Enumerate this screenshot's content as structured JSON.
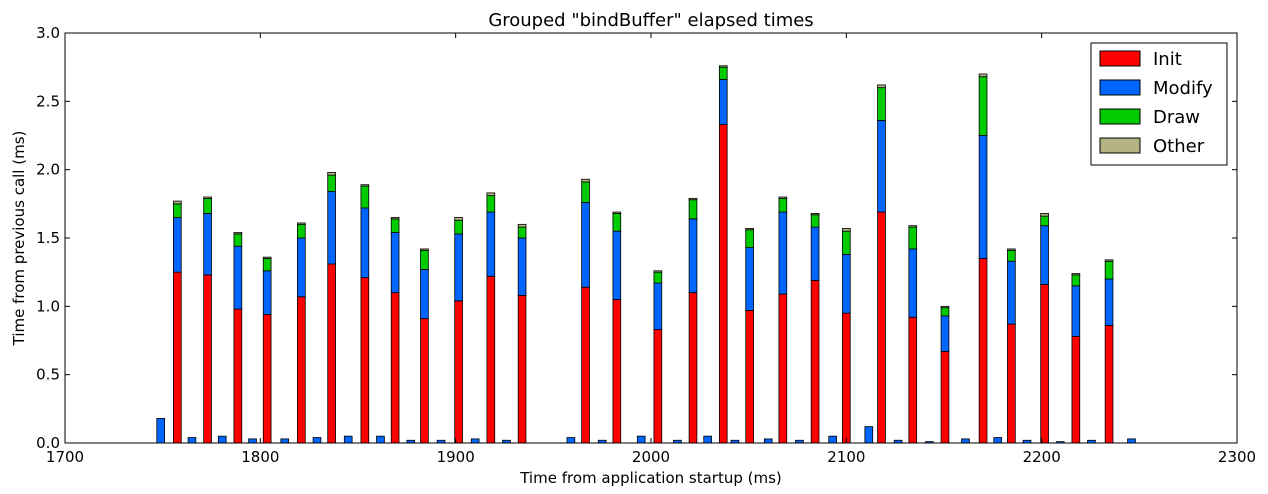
{
  "chart_data": {
    "type": "bar",
    "stacked": true,
    "title": "Grouped \"bindBuffer\" elapsed times",
    "xlabel": "Time from application startup (ms)",
    "ylabel": "Time from previous call (ms)",
    "xlim": [
      1700,
      2300
    ],
    "ylim": [
      0,
      3.0
    ],
    "xticks": [
      1700,
      1800,
      1900,
      2000,
      2100,
      2200,
      2300
    ],
    "xtick_labels": [
      "1700",
      "1800",
      "1900",
      "2000",
      "2100",
      "2200",
      "2300"
    ],
    "yticks": [
      0,
      0.5,
      1.0,
      1.5,
      2.0,
      2.5,
      3.0
    ],
    "ytick_labels": [
      "0.0",
      "0.5",
      "1.0",
      "1.5",
      "2.0",
      "2.5",
      "3.0"
    ],
    "grid": false,
    "legend_position": "top-right",
    "legend": [
      {
        "name": "Init",
        "color": "#ff0000"
      },
      {
        "name": "Modify",
        "color": "#0066ff"
      },
      {
        "name": "Draw",
        "color": "#00cc00"
      },
      {
        "name": "Other",
        "color": "#b2b282"
      }
    ],
    "stacked_bars": [
      {
        "x": 1757.5,
        "init": 1.25,
        "modify": 0.4,
        "draw": 0.1,
        "other": 0.02
      },
      {
        "x": 1773.0,
        "init": 1.23,
        "modify": 0.45,
        "draw": 0.11,
        "other": 0.01
      },
      {
        "x": 1788.5,
        "init": 0.98,
        "modify": 0.46,
        "draw": 0.09,
        "other": 0.01
      },
      {
        "x": 1803.5,
        "init": 0.94,
        "modify": 0.32,
        "draw": 0.09,
        "other": 0.01
      },
      {
        "x": 1821.0,
        "init": 1.07,
        "modify": 0.43,
        "draw": 0.1,
        "other": 0.01
      },
      {
        "x": 1836.5,
        "init": 1.31,
        "modify": 0.53,
        "draw": 0.12,
        "other": 0.02
      },
      {
        "x": 1853.5,
        "init": 1.21,
        "modify": 0.51,
        "draw": 0.16,
        "other": 0.01
      },
      {
        "x": 1869.0,
        "init": 1.1,
        "modify": 0.44,
        "draw": 0.1,
        "other": 0.01
      },
      {
        "x": 1884.0,
        "init": 0.91,
        "modify": 0.36,
        "draw": 0.14,
        "other": 0.01
      },
      {
        "x": 1901.5,
        "init": 1.04,
        "modify": 0.49,
        "draw": 0.1,
        "other": 0.02
      },
      {
        "x": 1918.0,
        "init": 1.22,
        "modify": 0.47,
        "draw": 0.12,
        "other": 0.02
      },
      {
        "x": 1934.0,
        "init": 1.08,
        "modify": 0.42,
        "draw": 0.08,
        "other": 0.02
      },
      {
        "x": 1966.5,
        "init": 1.14,
        "modify": 0.62,
        "draw": 0.15,
        "other": 0.02
      },
      {
        "x": 1982.5,
        "init": 1.05,
        "modify": 0.5,
        "draw": 0.13,
        "other": 0.01
      },
      {
        "x": 2003.5,
        "init": 0.83,
        "modify": 0.34,
        "draw": 0.08,
        "other": 0.01
      },
      {
        "x": 2021.5,
        "init": 1.1,
        "modify": 0.54,
        "draw": 0.14,
        "other": 0.01
      },
      {
        "x": 2037.0,
        "init": 2.33,
        "modify": 0.33,
        "draw": 0.09,
        "other": 0.01
      },
      {
        "x": 2050.5,
        "init": 0.97,
        "modify": 0.46,
        "draw": 0.13,
        "other": 0.01
      },
      {
        "x": 2067.5,
        "init": 1.09,
        "modify": 0.6,
        "draw": 0.1,
        "other": 0.01
      },
      {
        "x": 2084.0,
        "init": 1.19,
        "modify": 0.39,
        "draw": 0.09,
        "other": 0.01
      },
      {
        "x": 2100.0,
        "init": 0.95,
        "modify": 0.43,
        "draw": 0.17,
        "other": 0.02
      },
      {
        "x": 2118.0,
        "init": 1.69,
        "modify": 0.67,
        "draw": 0.24,
        "other": 0.02
      },
      {
        "x": 2134.0,
        "init": 0.92,
        "modify": 0.5,
        "draw": 0.16,
        "other": 0.01
      },
      {
        "x": 2150.5,
        "init": 0.67,
        "modify": 0.26,
        "draw": 0.06,
        "other": 0.01
      },
      {
        "x": 2170.0,
        "init": 1.35,
        "modify": 0.9,
        "draw": 0.43,
        "other": 0.02
      },
      {
        "x": 2184.5,
        "init": 0.87,
        "modify": 0.46,
        "draw": 0.08,
        "other": 0.01
      },
      {
        "x": 2201.5,
        "init": 1.16,
        "modify": 0.43,
        "draw": 0.07,
        "other": 0.02
      },
      {
        "x": 2217.5,
        "init": 0.78,
        "modify": 0.37,
        "draw": 0.08,
        "other": 0.01
      },
      {
        "x": 2234.5,
        "init": 0.86,
        "modify": 0.34,
        "draw": 0.13,
        "other": 0.01
      }
    ],
    "small_bars": [
      {
        "x": 1749.0,
        "modify": 0.18
      },
      {
        "x": 1765.0,
        "modify": 0.04
      },
      {
        "x": 1780.5,
        "modify": 0.05
      },
      {
        "x": 1796.0,
        "modify": 0.03
      },
      {
        "x": 1812.5,
        "modify": 0.03
      },
      {
        "x": 1829.0,
        "modify": 0.04
      },
      {
        "x": 1845.0,
        "modify": 0.05
      },
      {
        "x": 1861.5,
        "modify": 0.05
      },
      {
        "x": 1877.0,
        "modify": 0.02
      },
      {
        "x": 1892.5,
        "modify": 0.02
      },
      {
        "x": 1910.0,
        "modify": 0.03
      },
      {
        "x": 1926.0,
        "modify": 0.02
      },
      {
        "x": 1959.0,
        "modify": 0.04
      },
      {
        "x": 1975.0,
        "modify": 0.02
      },
      {
        "x": 1995.0,
        "modify": 0.05
      },
      {
        "x": 2013.5,
        "modify": 0.02
      },
      {
        "x": 2029.0,
        "modify": 0.05
      },
      {
        "x": 2043.0,
        "modify": 0.02
      },
      {
        "x": 2060.0,
        "modify": 0.03
      },
      {
        "x": 2076.0,
        "modify": 0.02
      },
      {
        "x": 2093.0,
        "modify": 0.05
      },
      {
        "x": 2111.5,
        "modify": 0.12
      },
      {
        "x": 2126.5,
        "modify": 0.02
      },
      {
        "x": 2142.5,
        "modify": 0.01
      },
      {
        "x": 2161.0,
        "modify": 0.03
      },
      {
        "x": 2177.5,
        "modify": 0.04
      },
      {
        "x": 2192.5,
        "modify": 0.02
      },
      {
        "x": 2209.5,
        "modify": 0.01
      },
      {
        "x": 2225.5,
        "modify": 0.02
      },
      {
        "x": 2246.0,
        "modify": 0.03
      }
    ],
    "bar_width": 4.0
  }
}
